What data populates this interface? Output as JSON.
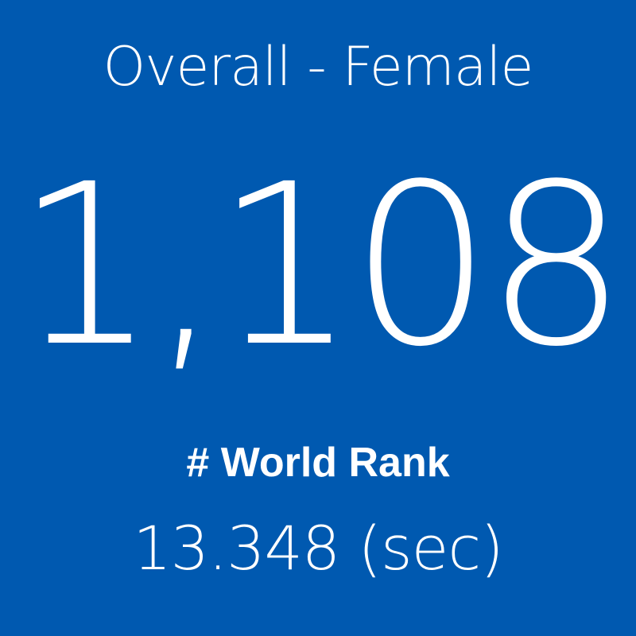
{
  "tile": {
    "title": "Overall - Female",
    "rank": "1,108",
    "rank_label": "# World Rank",
    "time": "13.348 (sec)"
  }
}
